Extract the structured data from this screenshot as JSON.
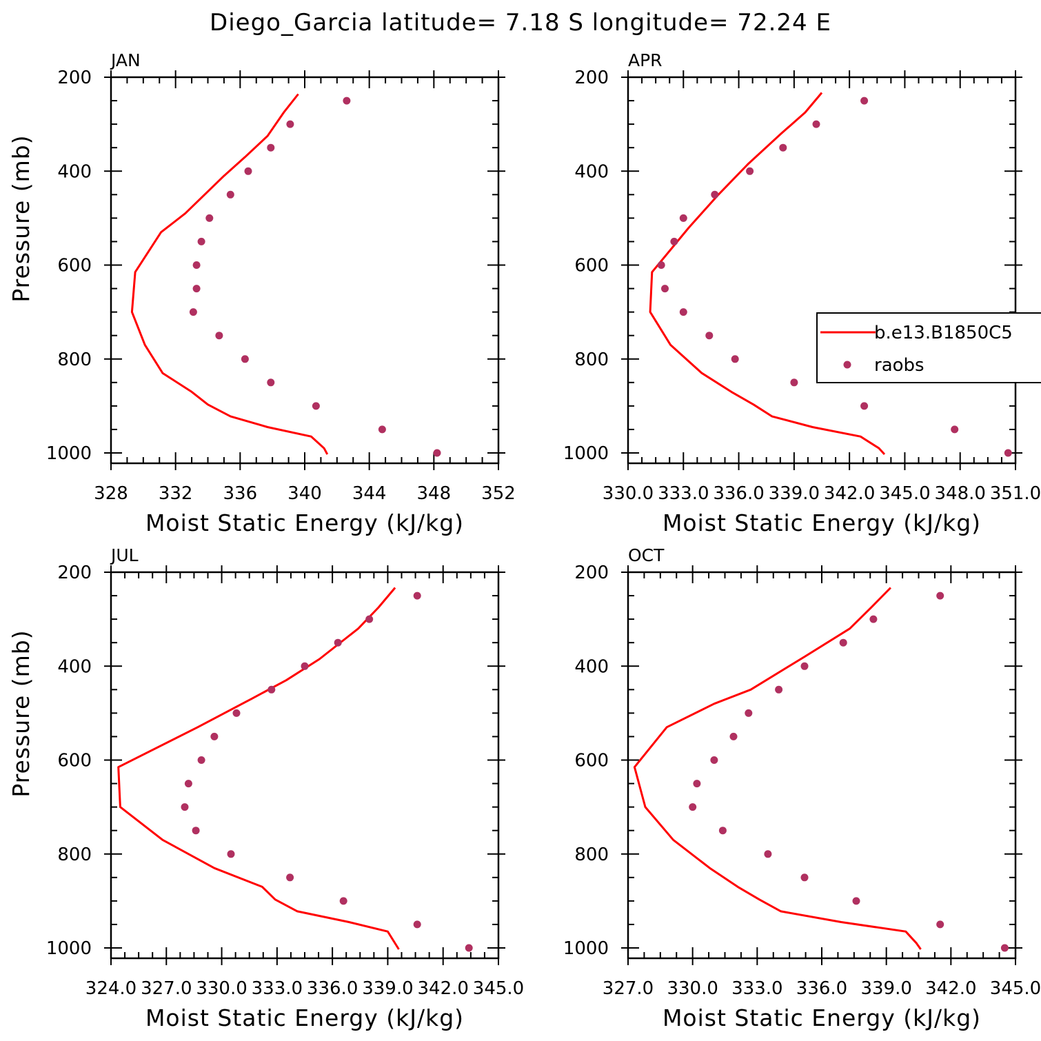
{
  "title": "Diego_Garcia  latitude= 7.18 S longitude= 72.24 E",
  "colors": {
    "model_line": "#ff0000",
    "raobs_marker": "#b03060",
    "axes": "#000000"
  },
  "legend": {
    "entries": [
      {
        "label": "b.e13.B1850C5",
        "style": "line"
      },
      {
        "label": "raobs",
        "style": "marker"
      }
    ]
  },
  "chart_data": [
    {
      "type": "line",
      "panel": "JAN",
      "xlabel": "Moist Static Energy (kJ/kg)",
      "ylabel": "Pressure (mb)",
      "xlim": [
        328,
        352
      ],
      "ylim": [
        1000,
        200
      ],
      "xticks": [
        "328",
        "332",
        "336",
        "340",
        "344",
        "348",
        "352"
      ],
      "xtick_values": [
        328,
        332,
        336,
        340,
        344,
        348,
        352
      ],
      "yticks": [
        "200",
        "400",
        "600",
        "800",
        "1000"
      ],
      "ytick_values": [
        200,
        400,
        600,
        800,
        1000
      ],
      "series": [
        {
          "name": "b.e13.B1850C5",
          "kind": "line",
          "x": [
            339.6,
            338.7,
            337.7,
            336.3,
            335.0,
            333.8,
            332.6,
            331.1,
            329.5,
            329.3,
            330.1,
            331.2,
            333.0,
            334.0,
            335.4,
            337.7,
            340.4,
            341.2,
            341.4
          ],
          "y": [
            236,
            275,
            325,
            370,
            410,
            450,
            490,
            530,
            615,
            700,
            770,
            830,
            870,
            897,
            922,
            945,
            965,
            990,
            1003
          ]
        },
        {
          "name": "raobs",
          "kind": "marker",
          "x": [
            342.6,
            339.1,
            337.9,
            336.5,
            335.4,
            334.1,
            333.6,
            333.3,
            333.3,
            333.1,
            334.7,
            336.3,
            337.9,
            340.7,
            344.8,
            348.2
          ],
          "y": [
            250,
            300,
            350,
            400,
            450,
            500,
            550,
            600,
            650,
            700,
            750,
            800,
            850,
            900,
            950,
            1000
          ]
        }
      ]
    },
    {
      "type": "line",
      "panel": "APR",
      "xlabel": "Moist Static Energy (kJ/kg)",
      "ylabel": "",
      "xlim": [
        330.0,
        351.0
      ],
      "ylim": [
        1000,
        200
      ],
      "xticks": [
        "330.0",
        "333.0",
        "336.0",
        "339.0",
        "342.0",
        "345.0",
        "348.0",
        "351.0"
      ],
      "xtick_values": [
        330,
        333,
        336,
        339,
        342,
        345,
        348,
        351
      ],
      "yticks": [
        "200",
        "400",
        "600",
        "800",
        "1000"
      ],
      "ytick_values": [
        200,
        400,
        600,
        800,
        1000
      ],
      "series": [
        {
          "name": "b.e13.B1850C5",
          "kind": "line",
          "x": [
            340.5,
            339.6,
            338.3,
            336.5,
            334.9,
            333.3,
            331.3,
            331.2,
            332.3,
            334.0,
            335.6,
            336.8,
            337.8,
            340.0,
            342.6,
            343.6,
            343.9
          ],
          "y": [
            233,
            275,
            320,
            385,
            450,
            520,
            615,
            700,
            770,
            830,
            870,
            897,
            922,
            945,
            965,
            990,
            1003
          ]
        },
        {
          "name": "raobs",
          "kind": "marker",
          "x": [
            342.8,
            340.2,
            338.4,
            336.6,
            334.7,
            333.0,
            332.5,
            331.8,
            332.0,
            333.0,
            334.4,
            335.8,
            339.0,
            342.8,
            347.7,
            350.6
          ],
          "y": [
            250,
            300,
            350,
            400,
            450,
            500,
            550,
            600,
            650,
            700,
            750,
            800,
            850,
            900,
            950,
            1000
          ]
        }
      ]
    },
    {
      "type": "line",
      "panel": "JUL",
      "xlabel": "Moist Static Energy (kJ/kg)",
      "ylabel": "Pressure (mb)",
      "xlim": [
        324.0,
        345.0
      ],
      "ylim": [
        1000,
        200
      ],
      "xticks": [
        "324.0",
        "327.0",
        "330.0",
        "333.0",
        "336.0",
        "339.0",
        "342.0",
        "345.0"
      ],
      "xtick_values": [
        324,
        327,
        330,
        333,
        336,
        339,
        342,
        345
      ],
      "yticks": [
        "200",
        "400",
        "600",
        "800",
        "1000"
      ],
      "ytick_values": [
        200,
        400,
        600,
        800,
        1000
      ],
      "series": [
        {
          "name": "b.e13.B1850C5",
          "kind": "line",
          "x": [
            339.4,
            338.5,
            337.4,
            335.3,
            333.5,
            331.6,
            328.7,
            324.4,
            324.5,
            326.8,
            329.6,
            332.2,
            332.9,
            334.1,
            336.9,
            339.0,
            339.6
          ],
          "y": [
            233,
            275,
            320,
            385,
            430,
            470,
            530,
            615,
            700,
            770,
            830,
            870,
            897,
            922,
            945,
            965,
            1003
          ]
        },
        {
          "name": "raobs",
          "kind": "marker",
          "x": [
            340.6,
            338.0,
            336.3,
            334.5,
            332.7,
            330.8,
            329.6,
            328.9,
            328.2,
            328.0,
            328.6,
            330.5,
            333.7,
            336.6,
            340.6,
            343.4
          ],
          "y": [
            250,
            300,
            350,
            400,
            450,
            500,
            550,
            600,
            650,
            700,
            750,
            800,
            850,
            900,
            950,
            1000
          ]
        }
      ]
    },
    {
      "type": "line",
      "panel": "OCT",
      "xlabel": "Moist Static Energy (kJ/kg)",
      "ylabel": "",
      "xlim": [
        327.0,
        345.0
      ],
      "ylim": [
        1000,
        200
      ],
      "xticks": [
        "327.0",
        "330.0",
        "333.0",
        "336.0",
        "339.0",
        "342.0",
        "345.0"
      ],
      "xtick_values": [
        327,
        330,
        333,
        336,
        339,
        342,
        345
      ],
      "yticks": [
        "200",
        "400",
        "600",
        "800",
        "1000"
      ],
      "ytick_values": [
        200,
        400,
        600,
        800,
        1000
      ],
      "series": [
        {
          "name": "b.e13.B1850C5",
          "kind": "line",
          "x": [
            339.2,
            338.3,
            337.3,
            335.2,
            332.7,
            331.0,
            328.8,
            327.3,
            327.8,
            329.1,
            330.8,
            332.1,
            333.1,
            334.1,
            336.9,
            339.9,
            340.4,
            340.6
          ],
          "y": [
            233,
            275,
            320,
            380,
            450,
            480,
            530,
            615,
            700,
            770,
            830,
            870,
            897,
            922,
            945,
            965,
            990,
            1003
          ]
        },
        {
          "name": "raobs",
          "kind": "marker",
          "x": [
            341.5,
            338.4,
            337.0,
            335.2,
            334.0,
            332.6,
            331.9,
            331.0,
            330.2,
            330.0,
            331.4,
            333.5,
            335.2,
            337.6,
            341.5,
            344.5
          ],
          "y": [
            250,
            300,
            350,
            400,
            450,
            500,
            550,
            600,
            650,
            700,
            750,
            800,
            850,
            900,
            950,
            1000
          ]
        }
      ]
    }
  ]
}
